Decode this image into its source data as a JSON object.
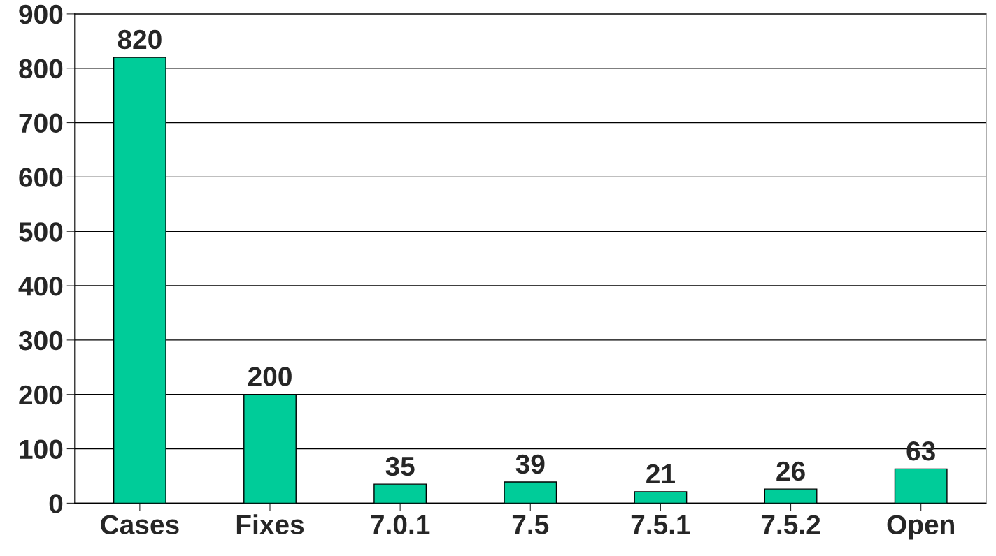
{
  "chart_data": {
    "type": "bar",
    "categories": [
      "Cases",
      "Fixes",
      "7.0.1",
      "7.5",
      "7.5.1",
      "7.5.2",
      "Open"
    ],
    "values": [
      820,
      200,
      35,
      39,
      21,
      26,
      63
    ],
    "color": "#00cc99",
    "ylim": [
      0,
      900
    ],
    "yticks": [
      0,
      100,
      200,
      300,
      400,
      500,
      600,
      700,
      800,
      900
    ],
    "grid": "y",
    "data_labels": true
  }
}
